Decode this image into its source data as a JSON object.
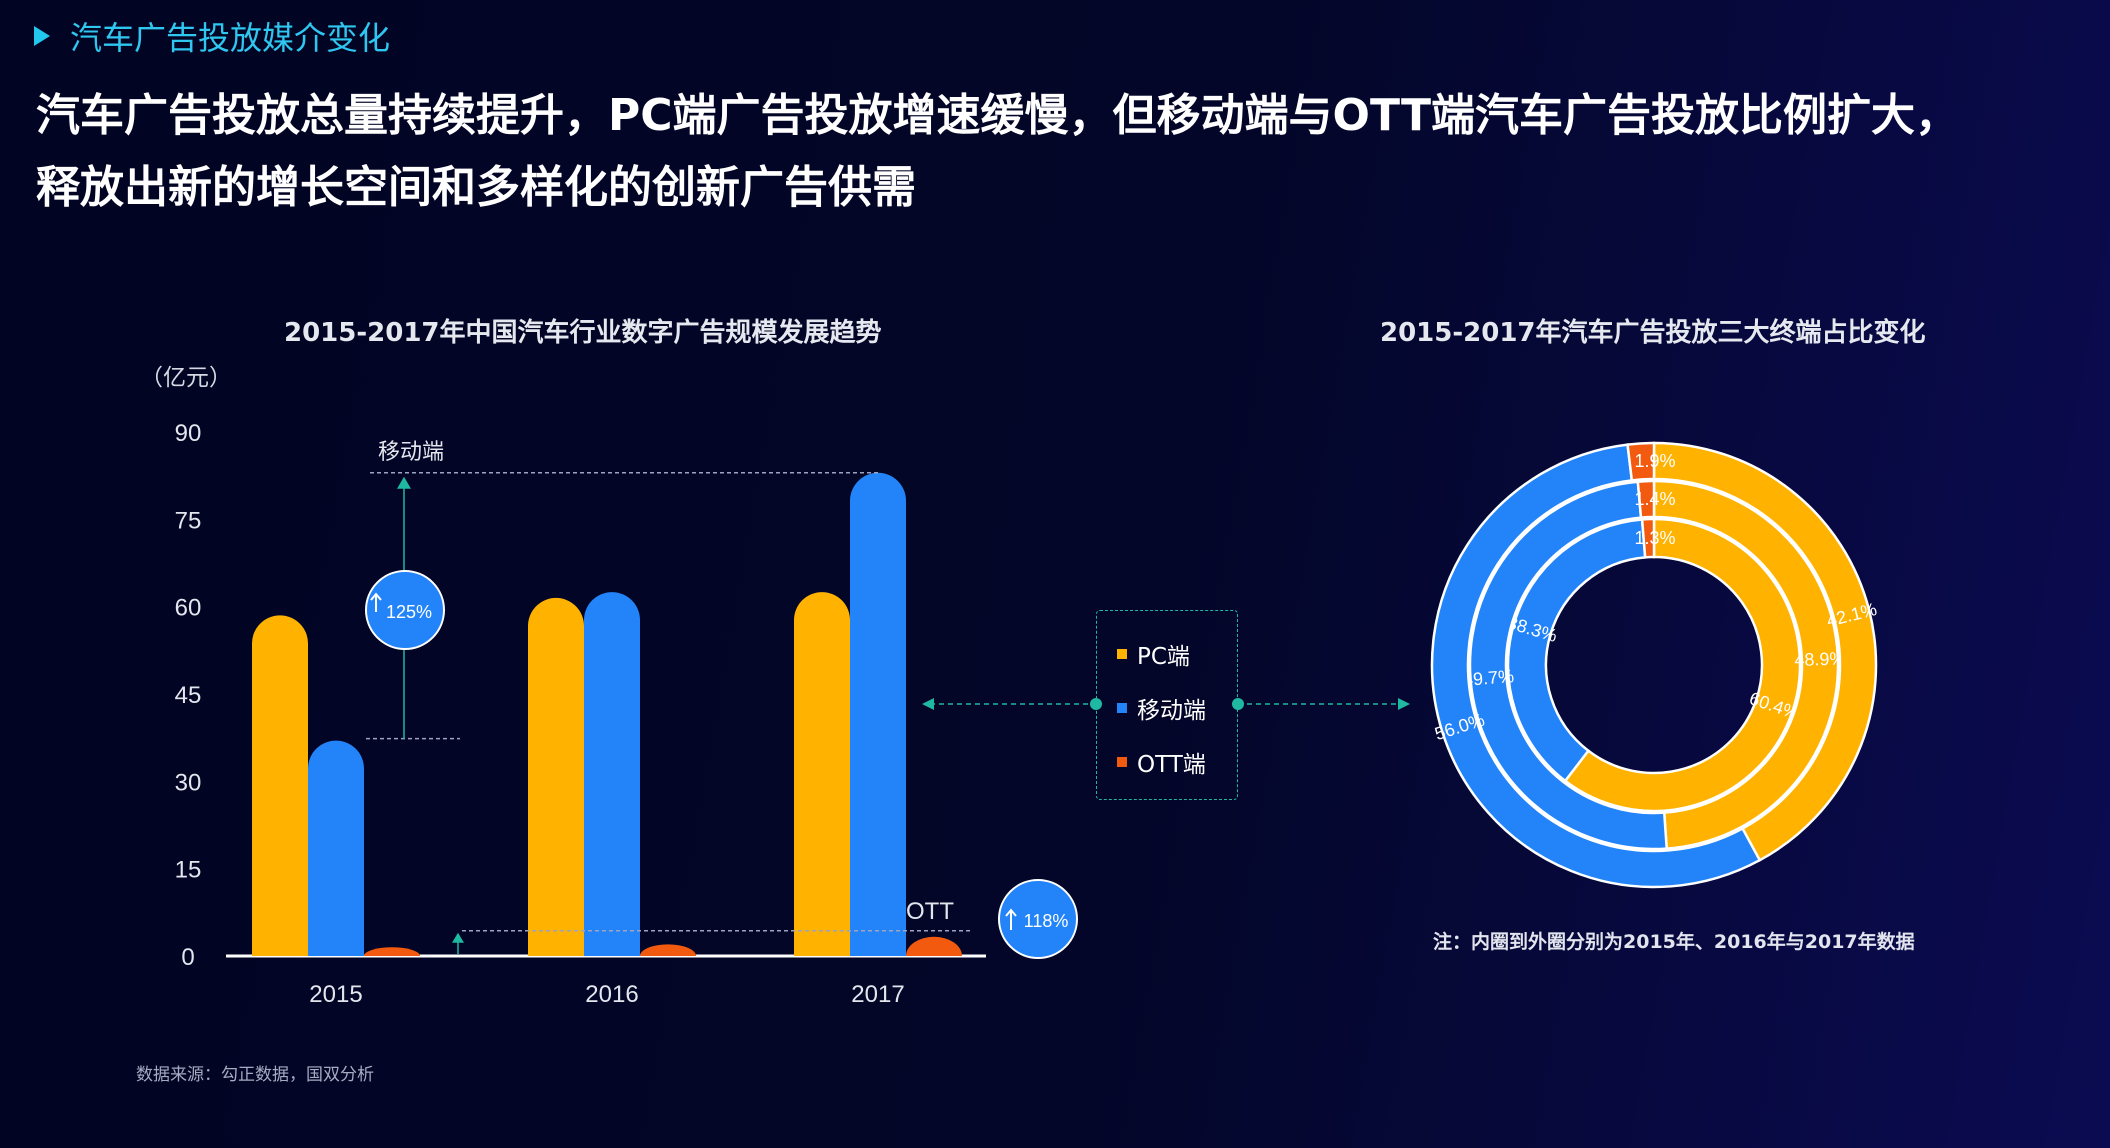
{
  "header": {
    "section_label": "汽车广告投放媒介变化",
    "headline_line1": "汽车广告投放总量持续提升，PC端广告投放增速缓慢，但移动端与OTT端汽车广告投放比例扩大，",
    "headline_line2": "释放出新的增长空间和多样化的创新广告供需"
  },
  "legend": [
    {
      "label": "PC端",
      "color": "#ffb200"
    },
    {
      "label": "移动端",
      "color": "#2284f8"
    },
    {
      "label": "OTT端",
      "color": "#f15a0f"
    }
  ],
  "footer": {
    "source": "数据来源：勾正数据，国双分析",
    "donut_note": "注：内圈到外圈分别为2015年、2016年与2017年数据"
  },
  "annotations": {
    "mobile_label": "移动端",
    "mobile_growth": "125%",
    "ott_label": "OTT",
    "ott_growth": "118%"
  },
  "colors": {
    "pc": "#ffb200",
    "mobile": "#2284f8",
    "ott": "#f15a0f",
    "accent": "#22c7ee",
    "dashed_teal": "#1fb8a0"
  },
  "chart_data": [
    {
      "type": "bar",
      "title": "2015-2017年中国汽车行业数字广告规模发展趋势",
      "ylabel": "（亿元）",
      "categories": [
        "2015",
        "2016",
        "2017"
      ],
      "ylim": [
        0,
        90
      ],
      "yticks": [
        0,
        15,
        30,
        45,
        60,
        75,
        90
      ],
      "series": [
        {
          "name": "PC端",
          "values": [
            58.5,
            61.5,
            62.5
          ]
        },
        {
          "name": "移动端",
          "values": [
            37,
            62.5,
            83
          ]
        },
        {
          "name": "OTT端",
          "values": [
            1.5,
            2,
            3.3
          ]
        }
      ]
    },
    {
      "type": "pie",
      "title": "2015-2017年汽车广告投放三大终端占比变化",
      "categories": [
        "PC端",
        "移动端",
        "OTT端"
      ],
      "series": [
        {
          "name": "2015",
          "values": [
            60.4,
            38.3,
            1.3
          ],
          "labels": [
            "60.4%",
            "38.3%",
            "1.3%"
          ]
        },
        {
          "name": "2016",
          "values": [
            48.9,
            49.7,
            1.4
          ],
          "labels": [
            "48.9%",
            "49.7%",
            "1.4%"
          ]
        },
        {
          "name": "2017",
          "values": [
            42.1,
            56.0,
            1.9
          ],
          "labels": [
            "42.1%",
            "56.0%",
            "1.9%"
          ]
        }
      ]
    }
  ]
}
